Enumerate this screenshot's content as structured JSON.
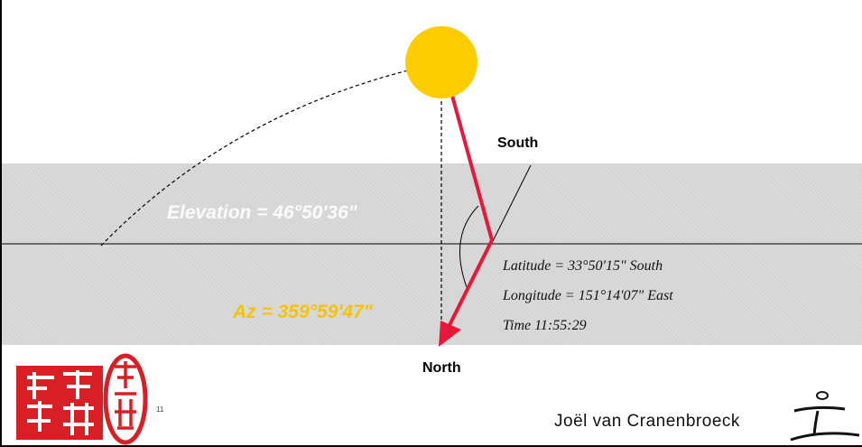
{
  "labels": {
    "south": "South",
    "north": "North",
    "elevation": "Elevation = 46°50'36\"",
    "azimuth": "Az = 359°59'47\""
  },
  "observer": {
    "latitude": "Latitude = 33°50'15\" South",
    "longitude": "Longitude = 151°14'07\" East",
    "time": "Time   11:55:29"
  },
  "footer": {
    "page_number": "11",
    "author": "Joël van Cranenbroeck"
  },
  "colors": {
    "sun": "#ffcc00",
    "arrow": "#e8173a",
    "azimuth_text": "#f7c300",
    "seal": "#d81f26",
    "plane": "#d4d4d4"
  },
  "icons": {
    "left_seal": "square-chinese-seal",
    "right_seal": "oval-chinese-seal",
    "logo": "author-calligraphy-logo"
  }
}
